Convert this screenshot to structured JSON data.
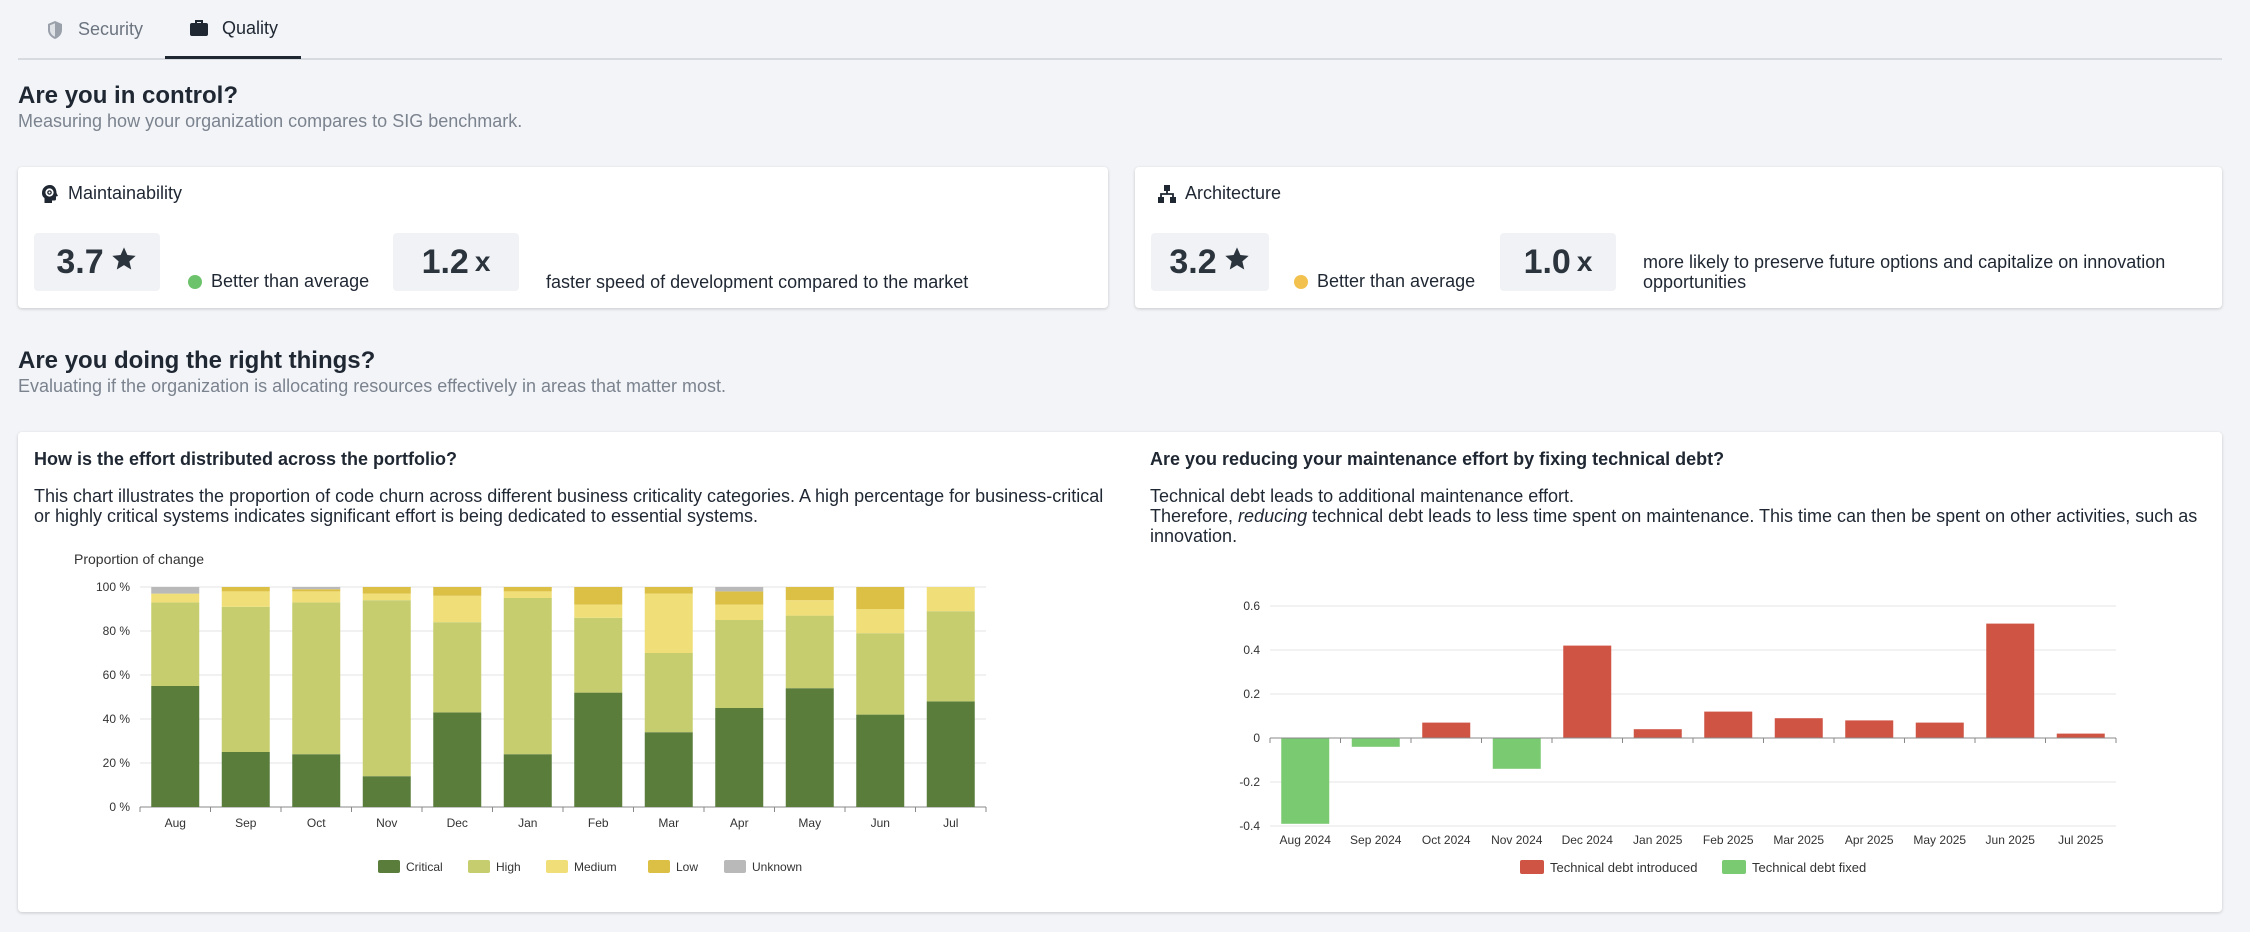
{
  "tabs": [
    {
      "label": "Security",
      "icon": "shield-icon",
      "active": false
    },
    {
      "label": "Quality",
      "icon": "briefcase-icon",
      "active": true
    }
  ],
  "control": {
    "title": "Are you in control?",
    "subtitle": "Measuring how your organization compares to SIG benchmark."
  },
  "maintainability": {
    "title": "Maintainability",
    "icon": "gear-head-icon",
    "rating": "3.7",
    "rating_icon": "star-icon",
    "status": "Better than average",
    "status_color": "#6cc36c",
    "factor": "1.2",
    "factor_unit": "x",
    "factor_text": "faster speed of development compared to the market"
  },
  "architecture": {
    "title": "Architecture",
    "icon": "hierarchy-icon",
    "rating": "3.2",
    "rating_icon": "star-icon",
    "status": "Better than average",
    "status_color": "#f2c14e",
    "factor": "1.0",
    "factor_unit": "x",
    "factor_text": "more likely to preserve future options and capitalize on innovation opportunities"
  },
  "right_things": {
    "title": "Are you doing the right things?",
    "subtitle": "Evaluating if the organization is allocating resources effectively in areas that matter most."
  },
  "effort_card": {
    "question": "How is the effort distributed across the portfolio?",
    "text": "This chart illustrates the proportion of code churn across different business criticality categories. A high percentage for business-critical or highly critical systems indicates significant effort is being dedicated to essential systems."
  },
  "debt_card": {
    "question": "Are you reducing your maintenance effort by fixing technical debt?",
    "line1": "Technical debt leads to additional maintenance effort.",
    "line2_pre": "Therefore, ",
    "line2_em": "reducing",
    "line2_post": " technical debt leads to less time spent on maintenance. This time can then be spent on other activities, such as innovation."
  },
  "chart_data": [
    {
      "type": "bar",
      "stacked": true,
      "ylabel": "Proportion of change",
      "ylim": [
        0,
        100
      ],
      "yticks": [
        "0 %",
        "20 %",
        "40 %",
        "60 %",
        "80 %",
        "100 %"
      ],
      "categories": [
        "Aug",
        "Sep",
        "Oct",
        "Nov",
        "Dec",
        "Jan",
        "Feb",
        "Mar",
        "Apr",
        "May",
        "Jun",
        "Jul"
      ],
      "legend_position": "bottom",
      "grid": true,
      "series": [
        {
          "name": "Critical",
          "color": "#5a7d3c",
          "values": [
            55,
            25,
            24,
            14,
            43,
            24,
            52,
            34,
            45,
            54,
            42,
            48
          ]
        },
        {
          "name": "High",
          "color": "#c6cd6e",
          "values": [
            38,
            66,
            69,
            80,
            41,
            71,
            34,
            36,
            40,
            33,
            37,
            41
          ]
        },
        {
          "name": "Medium",
          "color": "#f0df78",
          "values": [
            4,
            7,
            5,
            3,
            12,
            3,
            6,
            27,
            7,
            7,
            11,
            11
          ]
        },
        {
          "name": "Low",
          "color": "#dcc046",
          "values": [
            0,
            2,
            1,
            3,
            4,
            2,
            8,
            3,
            6,
            6,
            10,
            0
          ]
        },
        {
          "name": "Unknown",
          "color": "#b9b9b9",
          "values": [
            3,
            0,
            1,
            0,
            0,
            0,
            0,
            0,
            2,
            0,
            0,
            0
          ]
        }
      ]
    },
    {
      "type": "bar",
      "categories": [
        "Aug 2024",
        "Sep 2024",
        "Oct 2024",
        "Nov 2024",
        "Dec 2024",
        "Jan 2025",
        "Feb 2025",
        "Mar 2025",
        "Apr 2025",
        "May 2025",
        "Jun 2025",
        "Jul 2025"
      ],
      "values": [
        -0.39,
        -0.04,
        0.07,
        -0.14,
        0.42,
        0.04,
        0.12,
        0.09,
        0.08,
        0.07,
        0.52,
        0.02
      ],
      "ylim": [
        -0.4,
        0.6
      ],
      "yticks": [
        "-0.4",
        "-0.2",
        "0",
        "0.2",
        "0.4",
        "0.6"
      ],
      "legend_position": "bottom",
      "grid": true,
      "series": [
        {
          "name": "Technical debt introduced",
          "color": "#cf5444"
        },
        {
          "name": "Technical debt fixed",
          "color": "#7aca72"
        }
      ]
    }
  ]
}
